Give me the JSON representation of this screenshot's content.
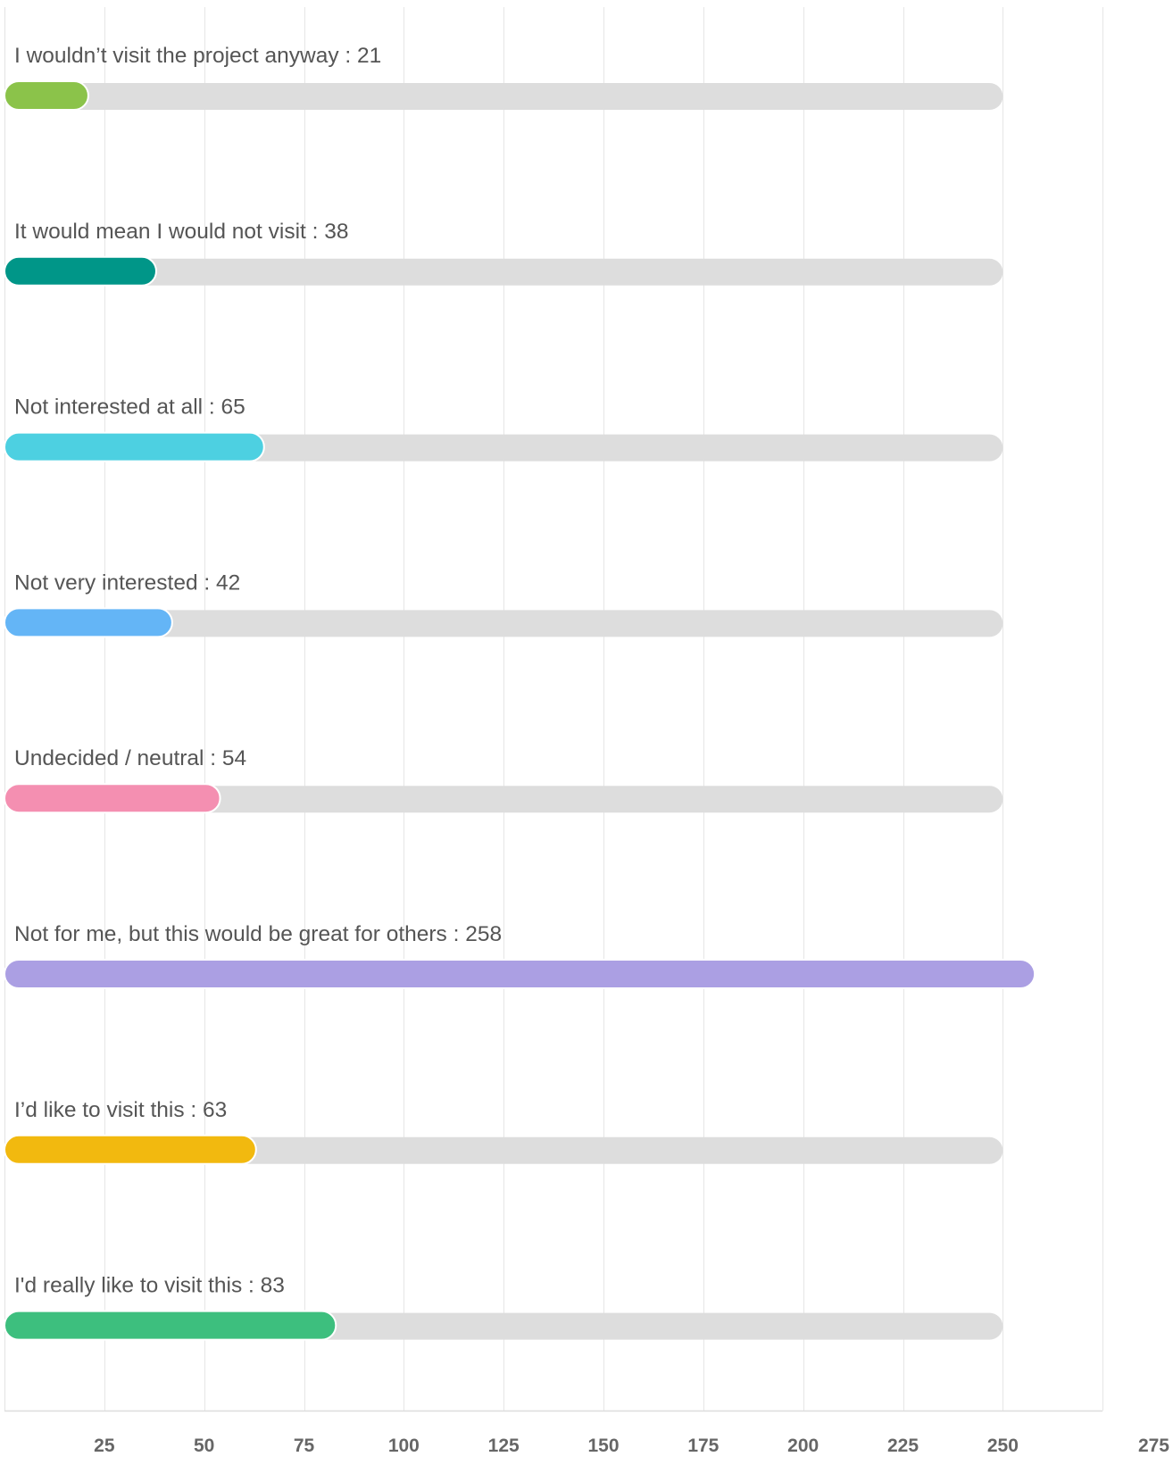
{
  "chart_data": {
    "type": "bar",
    "orientation": "horizontal",
    "categories": [
      "I wouldn’t visit the project anyway",
      "It would mean I would not visit",
      "Not interested at all",
      "Not very interested",
      "Undecided / neutral",
      "Not for me, but this would be great for others",
      "I’d like to visit this",
      "I'd really like to visit this"
    ],
    "values": [
      21,
      38,
      65,
      42,
      54,
      258,
      63,
      83
    ],
    "colors": [
      "#8bc34a",
      "#009688",
      "#4dd0e1",
      "#64b5f6",
      "#f48fb1",
      "#ab9fe3",
      "#f2b90f",
      "#3dbf7e"
    ],
    "track_max": 250,
    "track_color": "#dddddd",
    "xlim": [
      0,
      275
    ],
    "xticks": [
      25,
      50,
      75,
      100,
      125,
      150,
      175,
      200,
      225,
      250,
      275
    ],
    "grid": true,
    "label_separator": " : ",
    "title": "",
    "xlabel": "",
    "ylabel": ""
  }
}
